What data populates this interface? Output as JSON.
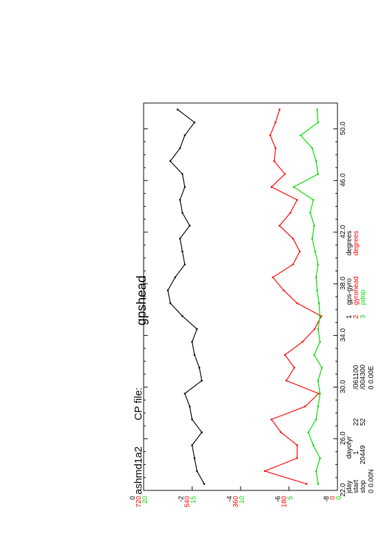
{
  "header": {
    "cruise": "ashmd1a2",
    "cpfile_label": "CP file:",
    "title": "gpshead"
  },
  "info": {
    "dayofyr_label": "dayofyr",
    "start_label": "start",
    "stop_label": "stop",
    "start_dayofyr": "1",
    "start_hour": "22",
    "start_time": "/061100",
    "stop_dayofyr": "20449",
    "stop_hour": "52",
    "stop_time": "/004300",
    "lat": "0  0.00N",
    "lon": "0  0.00E",
    "xaxis_label": "jday"
  },
  "legend": [
    {
      "num": "1",
      "name": "gps-gyro",
      "unit": "degrees",
      "color": "#000000"
    },
    {
      "num": "2",
      "name": "gyrohead",
      "unit": "degrees",
      "color": "#ff0000"
    },
    {
      "num": "3",
      "name": "pdop",
      "unit": "",
      "color": "#00dd00"
    }
  ],
  "chart_data": {
    "type": "line",
    "orientation": "rotated-90",
    "xlabel": "jday",
    "xlim": [
      22.0,
      52.0
    ],
    "x_ticks": [
      "22.0",
      "26.0",
      "30.0",
      "34.0",
      "38.0",
      "42.0",
      "46.0",
      "50.0"
    ],
    "axes": [
      {
        "series": "gps-gyro",
        "color": "#000000",
        "ticks": [
          "0",
          "-2",
          "-4",
          "-6",
          "-8"
        ],
        "ylim": [
          0,
          -8
        ]
      },
      {
        "series": "gyrohead",
        "color": "#ff0000",
        "ticks": [
          "720",
          "540",
          "360",
          "180",
          "0"
        ],
        "ylim": [
          720,
          0
        ]
      },
      {
        "series": "pdop",
        "color": "#00dd00",
        "ticks": [
          "20",
          "15",
          "10",
          "5",
          "0"
        ],
        "ylim": [
          20,
          0
        ]
      }
    ],
    "series": [
      {
        "name": "gps-gyro",
        "x": [
          22.5,
          23.5,
          24.5,
          25.5,
          26.5,
          27.5,
          28.5,
          29.5,
          30.5,
          31.5,
          32.5,
          33.5,
          34.5,
          35.5,
          36.5,
          37.5,
          38.5,
          39.5,
          40.5,
          41.5,
          42.5,
          43.5,
          44.5,
          45.5,
          46.5,
          47.5,
          48.5,
          49.5,
          50.5,
          51.5
        ],
        "values": [
          -2.5,
          -2.2,
          -2.1,
          -2.0,
          -2.4,
          -2.0,
          -1.9,
          -1.7,
          -2.4,
          -2.3,
          -2.1,
          -2.0,
          -2.2,
          -1.6,
          -1.1,
          -1.0,
          -1.3,
          -1.7,
          -1.6,
          -1.5,
          -1.9,
          -1.6,
          -1.5,
          -1.7,
          -1.6,
          -1.1,
          -1.5,
          -1.7,
          -2.1,
          -1.4
        ]
      },
      {
        "name": "gyrohead",
        "x": [
          22.5,
          23.5,
          24.5,
          25.5,
          26.5,
          27.5,
          28.5,
          29.5,
          30.5,
          31.5,
          32.5,
          33.5,
          34.5,
          35.5,
          36.5,
          37.5,
          38.5,
          39.5,
          40.5,
          41.5,
          42.5,
          43.5,
          44.5,
          45.5,
          46.5,
          47.5,
          48.5,
          49.5,
          50.5,
          51.5
        ],
        "values": [
          115,
          270,
          150,
          150,
          210,
          245,
          120,
          70,
          190,
          160,
          195,
          130,
          85,
          60,
          150,
          200,
          240,
          165,
          140,
          165,
          215,
          175,
          150,
          245,
          195,
          235,
          230,
          250,
          230,
          215
        ]
      },
      {
        "name": "pdop",
        "x": [
          22.5,
          23.5,
          24.5,
          25.5,
          26.5,
          27.5,
          28.5,
          29.5,
          30.5,
          31.5,
          32.5,
          33.5,
          34.5,
          35.5,
          36.5,
          37.5,
          38.5,
          39.5,
          40.5,
          41.5,
          42.5,
          43.5,
          44.5,
          45.5,
          46.5,
          47.5,
          48.5,
          49.5,
          50.5,
          51.5
        ],
        "values": [
          2.0,
          2.2,
          1.8,
          2.5,
          3.0,
          2.2,
          2.0,
          1.8,
          2.0,
          1.6,
          2.4,
          1.8,
          2.0,
          1.8,
          1.9,
          2.1,
          2.2,
          2.0,
          2.3,
          2.6,
          2.4,
          2.8,
          2.5,
          4.5,
          2.0,
          2.2,
          2.6,
          3.8,
          2.0,
          2.1
        ]
      }
    ]
  }
}
